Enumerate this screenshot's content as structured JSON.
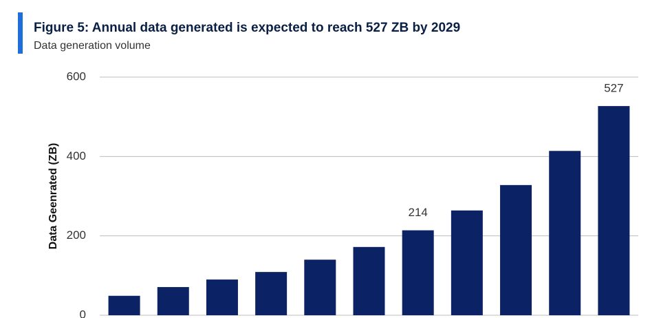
{
  "chart_data": {
    "type": "bar",
    "title": "Figure 5: Annual data generated is expected to reach 527 ZB by 2029",
    "subtitle": "Data generation volume",
    "y_label": "Data Geenrated (ZB)",
    "categories": [
      null,
      null,
      null,
      null,
      null,
      null,
      null,
      null,
      null,
      null,
      null
    ],
    "values": [
      49,
      71,
      90,
      109,
      140,
      172,
      214,
      264,
      328,
      414,
      527
    ],
    "value_labels": [
      null,
      null,
      null,
      null,
      null,
      null,
      "214",
      null,
      null,
      null,
      "527"
    ],
    "color": "#0b2265",
    "ylim": [
      0,
      600
    ],
    "yticks": [
      0,
      200,
      400,
      600
    ],
    "grid": true
  }
}
